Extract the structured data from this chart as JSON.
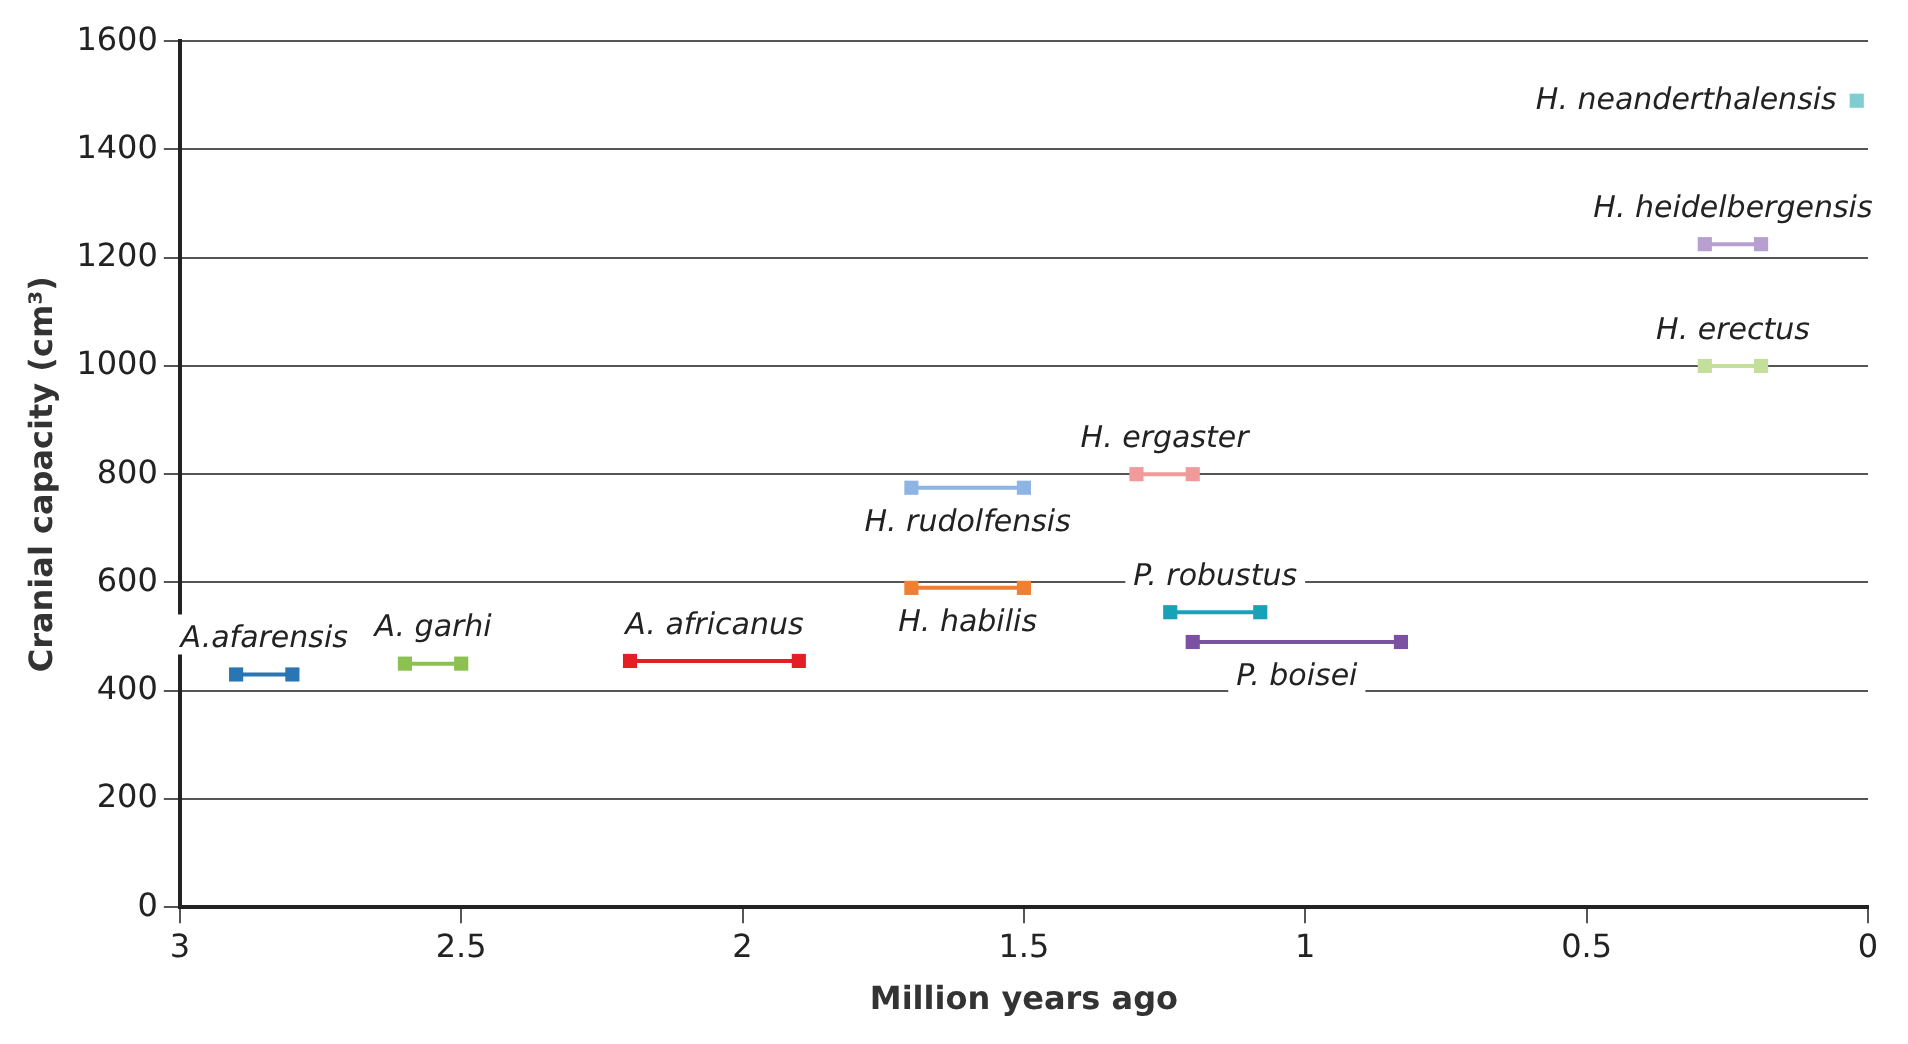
{
  "chart_data": {
    "type": "line",
    "xlabel": "Million years ago",
    "ylabel": "Cranial capacity (cm³)",
    "xlim": [
      3,
      0
    ],
    "xticks": [
      3,
      2.5,
      2,
      1.5,
      1,
      0.5,
      0
    ],
    "ylim": [
      0,
      1600
    ],
    "yticks": [
      0,
      200,
      400,
      600,
      800,
      1000,
      1200,
      1400,
      1600
    ],
    "grid": "y",
    "legend": false,
    "marker": "square",
    "line_style": "solid",
    "series": [
      {
        "name": "A.afarensis",
        "color": "#2a75b3",
        "x": [
          2.9,
          2.8
        ],
        "values": [
          430,
          430
        ]
      },
      {
        "name": "A. garhi",
        "color": "#8cc152",
        "x": [
          2.6,
          2.5
        ],
        "values": [
          450,
          450
        ]
      },
      {
        "name": "A. africanus",
        "color": "#e31e24",
        "x": [
          2.2,
          1.9
        ],
        "values": [
          455,
          455
        ]
      },
      {
        "name": "H. rudolfensis",
        "color": "#8db4e2",
        "x": [
          1.7,
          1.5
        ],
        "values": [
          775,
          775
        ]
      },
      {
        "name": "H. habilis",
        "color": "#f07f32",
        "x": [
          1.7,
          1.5
        ],
        "values": [
          590,
          590
        ]
      },
      {
        "name": "H. ergaster",
        "color": "#f09a9a",
        "x": [
          1.3,
          1.2
        ],
        "values": [
          800,
          800
        ]
      },
      {
        "name": "P. robustus",
        "color": "#17a2b8",
        "x": [
          1.24,
          1.08
        ],
        "values": [
          545,
          545
        ]
      },
      {
        "name": "P. boisei",
        "color": "#7b52a3",
        "x": [
          1.2,
          0.83
        ],
        "values": [
          490,
          490
        ]
      },
      {
        "name": "H. neanderthalensis",
        "color": "#7fcdd0",
        "x": [
          0.02
        ],
        "values": [
          1490
        ]
      },
      {
        "name": "H. heidelbergensis",
        "color": "#b79fd0",
        "x": [
          0.29,
          0.19
        ],
        "values": [
          1225,
          1225
        ]
      },
      {
        "name": "H. erectus",
        "color": "#c4df9b",
        "x": [
          0.29,
          0.19
        ],
        "values": [
          1000,
          1000
        ]
      }
    ]
  }
}
